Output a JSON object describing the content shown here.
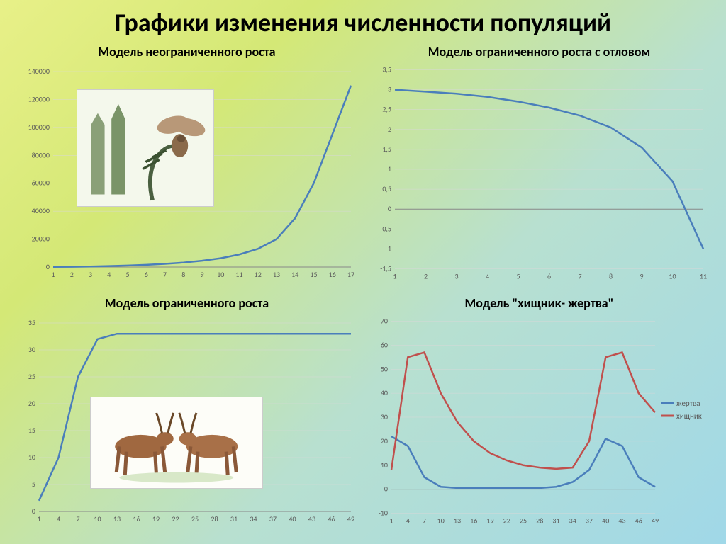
{
  "title": "Графики изменения численности популяций",
  "background_gradient": [
    "#e8f088",
    "#d4e876",
    "#b8e0d0",
    "#a0d8e8"
  ],
  "chart1": {
    "title": "Модель неограниченного роста",
    "type": "line",
    "x_ticks": [
      1,
      2,
      3,
      4,
      5,
      6,
      7,
      8,
      9,
      10,
      11,
      12,
      13,
      14,
      15,
      16,
      17
    ],
    "y_ticks": [
      0,
      20000,
      40000,
      60000,
      80000,
      100000,
      120000,
      140000
    ],
    "ylim": [
      0,
      140000
    ],
    "series": [
      {
        "name": "population",
        "color": "#4a7ebb",
        "values": [
          100,
          200,
          400,
          700,
          1100,
          1600,
          2300,
          3200,
          4500,
          6300,
          9000,
          13000,
          20000,
          35000,
          60000,
          95000,
          130000
        ]
      }
    ],
    "line_width": 2.5,
    "grid_color": "#d8d8d8",
    "axis_color": "#888",
    "inset_image": {
      "label": "pine-moth-illustration",
      "left_pct": 18,
      "top_pct": 12,
      "width_pct": 40,
      "height_pct": 52
    }
  },
  "chart2": {
    "title": "Модель ограниченного роста с отловом",
    "type": "line",
    "x_ticks": [
      1,
      2,
      3,
      4,
      5,
      6,
      7,
      8,
      9,
      10,
      11
    ],
    "y_ticks": [
      -1.5,
      -1,
      -0.5,
      0,
      0.5,
      1,
      1.5,
      2,
      2.5,
      3,
      3.5
    ],
    "ylim": [
      -1.5,
      3.5
    ],
    "series": [
      {
        "name": "population",
        "color": "#4a7ebb",
        "values": [
          3.0,
          2.95,
          2.9,
          2.82,
          2.7,
          2.55,
          2.35,
          2.05,
          1.55,
          0.7,
          -1.0
        ]
      }
    ],
    "line_width": 2.5,
    "grid_color": "#d8d8d8",
    "axis_color": "#888"
  },
  "chart3": {
    "title": "Модель ограниченного роста",
    "type": "line",
    "x_ticks": [
      1,
      4,
      7,
      10,
      13,
      16,
      19,
      22,
      25,
      28,
      31,
      34,
      37,
      40,
      43,
      46,
      49
    ],
    "all_x": [
      1,
      4,
      7,
      10,
      13,
      16,
      19,
      22,
      25,
      28,
      31,
      34,
      37,
      40,
      43,
      46,
      49
    ],
    "y_ticks": [
      0,
      5,
      10,
      15,
      20,
      25,
      30,
      35
    ],
    "ylim": [
      0,
      35
    ],
    "series": [
      {
        "name": "population",
        "color": "#4a7ebb",
        "values": [
          2,
          10,
          25,
          32,
          33,
          33,
          33,
          33,
          33,
          33,
          33,
          33,
          33,
          33,
          33,
          33,
          33
        ]
      }
    ],
    "line_width": 2.5,
    "grid_color": "#d8d8d8",
    "axis_color": "#888",
    "inset_image": {
      "label": "antelopes-illustration",
      "left_pct": 22,
      "top_pct": 38,
      "width_pct": 50,
      "height_pct": 42
    }
  },
  "chart4": {
    "title": "Модель \"хищник- жертва\"",
    "type": "line",
    "x_ticks": [
      1,
      4,
      7,
      10,
      13,
      16,
      19,
      22,
      25,
      28,
      31,
      34,
      37,
      40,
      43,
      46,
      49
    ],
    "all_x": [
      1,
      4,
      7,
      10,
      13,
      16,
      19,
      22,
      25,
      28,
      31,
      34,
      37,
      40,
      43,
      46,
      49
    ],
    "y_ticks": [
      -10,
      0,
      10,
      20,
      30,
      40,
      50,
      60,
      70
    ],
    "ylim": [
      -10,
      70
    ],
    "series": [
      {
        "name": "prey",
        "label": "жертва",
        "color": "#4a7ebb",
        "values": [
          22,
          18,
          5,
          1,
          0.5,
          0.5,
          0.5,
          0.5,
          0.5,
          0.5,
          1,
          3,
          8,
          21,
          18,
          5,
          1
        ]
      },
      {
        "name": "predator",
        "label": "хищник",
        "color": "#c0504d",
        "values": [
          8,
          55,
          57,
          40,
          28,
          20,
          15,
          12,
          10,
          9,
          8.5,
          9,
          20,
          55,
          57,
          40,
          32
        ]
      }
    ],
    "line_width": 2.5,
    "grid_color": "#d8d8d8",
    "axis_color": "#888",
    "legend": {
      "position": "right",
      "items": [
        "жертва",
        "хищник"
      ]
    }
  }
}
